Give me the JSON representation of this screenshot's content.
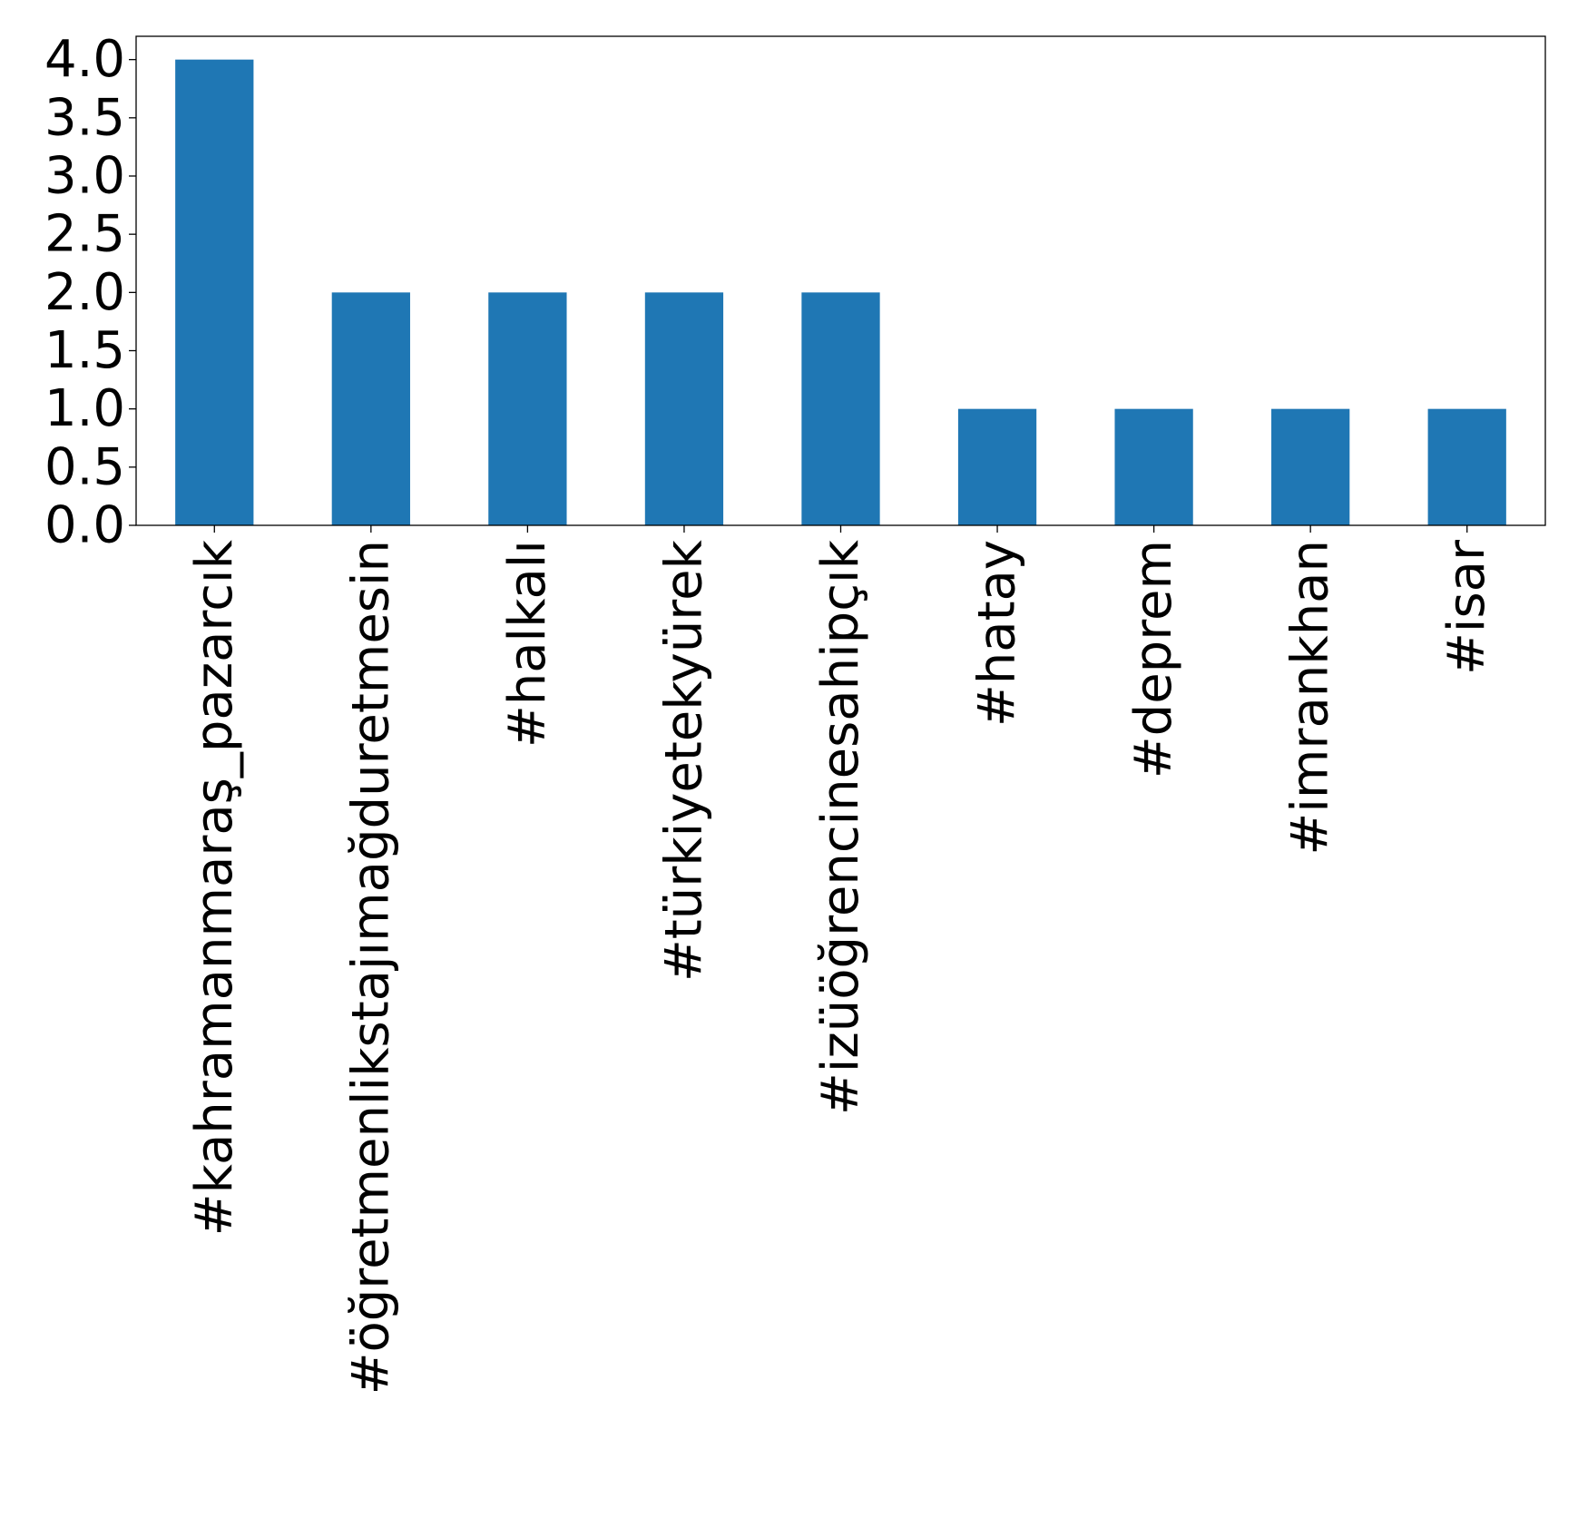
{
  "colors": {
    "bar": "#1f77b4",
    "axis": "#000000",
    "background": "#ffffff"
  },
  "chart_data": {
    "type": "bar",
    "title": "",
    "xlabel": "",
    "ylabel": "",
    "ylim": [
      0,
      4.2
    ],
    "yticks": [
      "0.0",
      "0.5",
      "1.0",
      "1.5",
      "2.0",
      "2.5",
      "3.0",
      "3.5",
      "4.0"
    ],
    "grid": false,
    "legend": "none",
    "categories": [
      "#kahramanmaraş_pazarcık",
      "#öğretmenlikstajımağduretmesin",
      "#halkalı",
      "#türkiyetekyürek",
      "#izüöğrencinesahipçık",
      "#hatay",
      "#deprem",
      "#imrankhan",
      "#isar"
    ],
    "values": [
      4,
      2,
      2,
      2,
      2,
      1,
      1,
      1,
      1
    ]
  }
}
